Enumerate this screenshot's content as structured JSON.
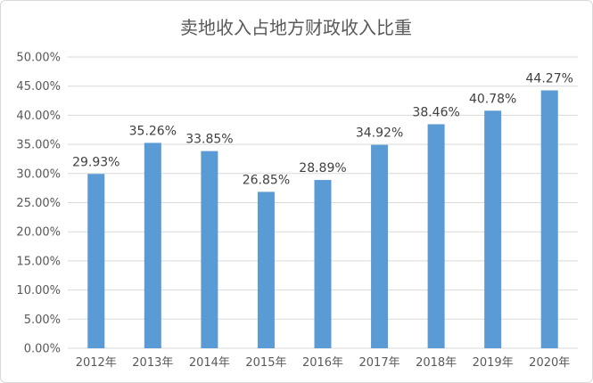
{
  "chart_data": {
    "type": "bar",
    "title": "卖地收入占地方财政收入比重",
    "xlabel": "",
    "ylabel": "",
    "categories": [
      "2012年",
      "2013年",
      "2014年",
      "2015年",
      "2016年",
      "2017年",
      "2018年",
      "2019年",
      "2020年"
    ],
    "values": [
      29.93,
      35.26,
      33.85,
      26.85,
      28.89,
      34.92,
      38.46,
      40.78,
      44.27
    ],
    "data_labels": [
      "29.93%",
      "35.26%",
      "33.85%",
      "26.85%",
      "28.89%",
      "34.92%",
      "38.46%",
      "40.78%",
      "44.27%"
    ],
    "ylim": [
      0,
      50
    ],
    "y_ticks": [
      0,
      5,
      10,
      15,
      20,
      25,
      30,
      35,
      40,
      45,
      50
    ],
    "y_tick_labels": [
      "0.00%",
      "5.00%",
      "10.00%",
      "15.00%",
      "20.00%",
      "25.00%",
      "30.00%",
      "35.00%",
      "40.00%",
      "45.00%",
      "50.00%"
    ],
    "grid": true,
    "legend": "none",
    "bar_color": "#5b9bd5",
    "grid_color": "#d9d9d9"
  }
}
